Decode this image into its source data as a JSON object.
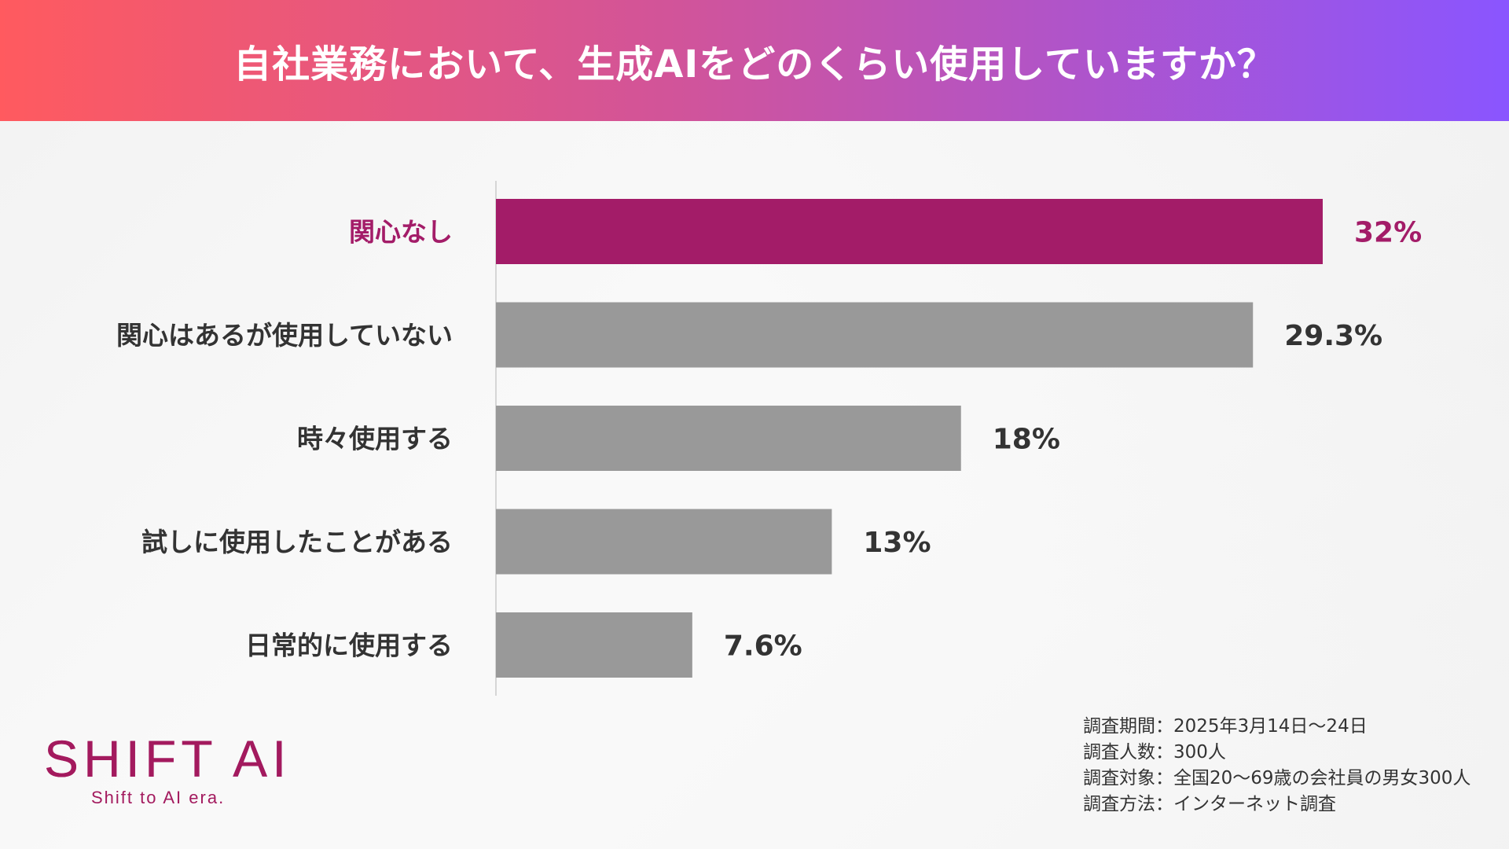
{
  "header": {
    "title": "自社業務において、生成AIをどのくらい使用していますか？",
    "gradient_start": "#ff5a5f",
    "gradient_end": "#8a55ff"
  },
  "chart_data": {
    "type": "bar",
    "orientation": "horizontal",
    "title": "自社業務において、生成AIをどのくらい使用していますか？",
    "categories": [
      "関心なし",
      "関心はあるが使用していない",
      "時々使用する",
      "試しに使用したことがある",
      "日常的に使用する"
    ],
    "values": [
      32,
      29.3,
      18,
      13,
      7.6
    ],
    "value_labels": [
      "32%",
      "29.3%",
      "18%",
      "13%",
      "7.6%"
    ],
    "unit": "%",
    "xlim": [
      0,
      32
    ],
    "highlight_index": 0,
    "highlight_color": "#a31c68",
    "bar_color": "#999999"
  },
  "footer": {
    "notes": [
      "調査期間：2025年3月14日〜24日",
      "調査人数：300人",
      "調査対象：全国20〜69歳の会社員の男女300人",
      "調査方法：インターネット調査"
    ]
  },
  "logo": {
    "main": "SHIFT AI",
    "tagline": "Shift to AI era."
  }
}
